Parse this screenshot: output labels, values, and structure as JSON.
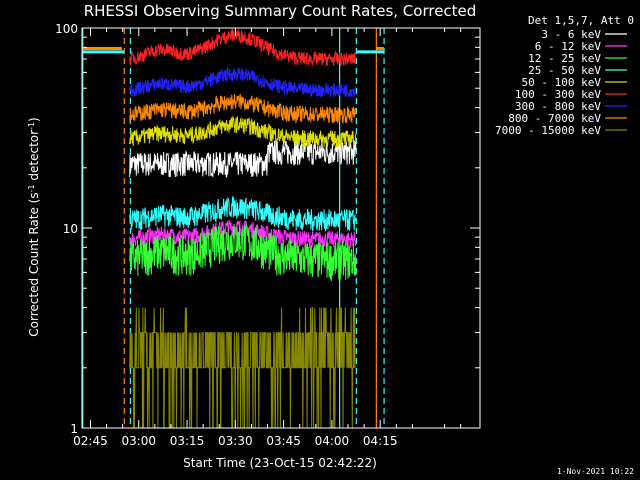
{
  "chart_data": {
    "type": "line",
    "title": "RHESSI Observing Summary Count Rates, Corrected",
    "xlabel": "Start Time (23-Oct-15 02:42:22)",
    "ylabel": "Corrected Count Rate (s",
    "ylabel_sup1": "-1",
    "ylabel_mid": " detector",
    "ylabel_sup2": "-1",
    "ylabel_end": ")",
    "yscale": "log",
    "ylim": [
      1,
      100
    ],
    "xlim_min": [
      162.37,
      286
    ],
    "x_ticks": [
      {
        "m": 165,
        "label": "02:45"
      },
      {
        "m": 180,
        "label": "03:00"
      },
      {
        "m": 195,
        "label": "03:15"
      },
      {
        "m": 210,
        "label": "03:30"
      },
      {
        "m": 225,
        "label": "03:45"
      },
      {
        "m": 240,
        "label": "04:00"
      },
      {
        "m": 255,
        "label": "04:15"
      }
    ],
    "y_ticks": [
      {
        "v": 1,
        "label": "1"
      },
      {
        "v": 10,
        "label": "10"
      },
      {
        "v": 100,
        "label": "100"
      }
    ],
    "legend_title": "Det 1,5,7, Att 0",
    "data_window_min": [
      177.2,
      247.5
    ],
    "series": [
      {
        "name": "3 - 6 keV",
        "color": "#ffffff",
        "segments": [
          [
            177.2,
            220,
            21
          ],
          [
            220,
            247.5,
            24
          ]
        ],
        "amp": 0,
        "noise": 0.09
      },
      {
        "name": "6 - 12 keV",
        "color": "#ff33ff",
        "segments": [
          [
            177.2,
            247.5,
            8.8
          ]
        ],
        "amp": 1.3,
        "noise": 0.06
      },
      {
        "name": "12 - 25 keV",
        "color": "#33ff33",
        "segments": [
          [
            177.2,
            247.5,
            7.0
          ]
        ],
        "amp": 1.8,
        "noise": 0.14
      },
      {
        "name": "25 - 50 keV",
        "color": "#33ffff",
        "segments": [
          [
            177.2,
            247.5,
            11.0
          ]
        ],
        "amp": 1.8,
        "noise": 0.08
      },
      {
        "name": "50 - 100 keV",
        "color": "#dddd00",
        "segments": [
          [
            177.2,
            247.5,
            28
          ]
        ],
        "amp": 5,
        "noise": 0.06
      },
      {
        "name": "100 - 300 keV",
        "color": "#ff2222",
        "segments": [
          [
            177.2,
            247.5,
            70
          ]
        ],
        "amp": 22,
        "noise": 0.05
      },
      {
        "name": "300 - 800 keV",
        "color": "#2222ff",
        "segments": [
          [
            177.2,
            247.5,
            49
          ]
        ],
        "amp": 10,
        "noise": 0.05
      },
      {
        "name": "800 - 7000 keV",
        "color": "#ff8800",
        "segments": [
          [
            177.2,
            247.5,
            37
          ]
        ],
        "amp": 6,
        "noise": 0.06
      },
      {
        "name": "7000 - 15000 keV",
        "color": "#888800",
        "levels": [
          2,
          3,
          4
        ],
        "noise": 0
      }
    ],
    "markers": [
      {
        "m": 162.6,
        "color": "#33ffff",
        "style": "solid"
      },
      {
        "m": 175.5,
        "color": "#ff8800",
        "style": "dashed"
      },
      {
        "m": 177.4,
        "color": "#33ffff",
        "style": "dashed"
      },
      {
        "m": 242.4,
        "color": "#33ffff",
        "style": "solid"
      },
      {
        "m": 247.6,
        "color": "#33ffff",
        "style": "dashed"
      },
      {
        "m": 253.8,
        "color": "#ff8800",
        "style": "solid"
      },
      {
        "m": 256.2,
        "color": "#33ffff",
        "style": "dashed"
      }
    ],
    "flags": [
      {
        "m0": 162.37,
        "m1": 175.5,
        "v": 76,
        "color": "#33ffff"
      },
      {
        "m0": 162.37,
        "m1": 174.8,
        "v": 79,
        "color": "#ff8800"
      },
      {
        "m0": 247.6,
        "m1": 256.2,
        "v": 76,
        "color": "#33ffff"
      },
      {
        "m0": 253.8,
        "m1": 256.2,
        "v": 79,
        "color": "#ff8800"
      }
    ]
  },
  "footer": {
    "date_stamp": "1-Nov-2021 10:22"
  }
}
